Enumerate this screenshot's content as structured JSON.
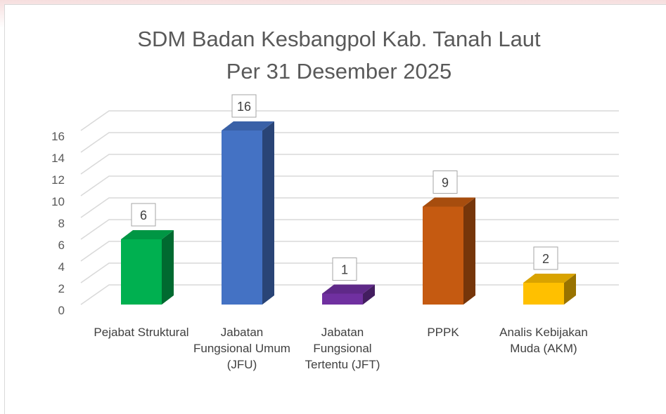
{
  "chart_data": {
    "type": "bar3d",
    "title": "SDM Badan Kesbangpol Kab. Tanah Laut",
    "subtitle": "Per 31 Desember 2025",
    "categories": [
      "Pejabat Struktural",
      "Jabatan Fungsional Umum (JFU)",
      "Jabatan Fungsional Tertentu (JFT)",
      "PPPK",
      "Analis Kebijakan Muda (AKM)"
    ],
    "values": [
      6,
      16,
      1,
      9,
      2
    ],
    "colors": [
      "#00b050",
      "#4472c4",
      "#7030a0",
      "#c55a11",
      "#ffc000"
    ],
    "ylim": [
      0,
      16
    ],
    "yticks": [
      0,
      2,
      4,
      6,
      8,
      10,
      12,
      14,
      16
    ],
    "grid": true
  }
}
